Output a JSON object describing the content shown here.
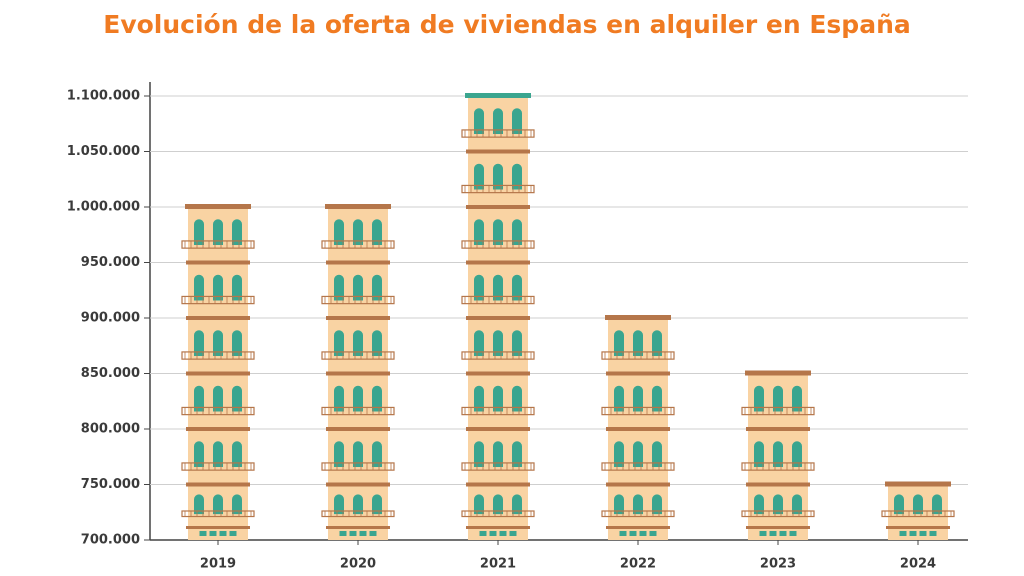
{
  "chart_data": {
    "type": "bar",
    "title": "Evolución de la oferta de viviendas en alquiler en España",
    "categories": [
      "2019",
      "2020",
      "2021",
      "2022",
      "2023",
      "2024"
    ],
    "values": [
      1000000,
      1000000,
      1100000,
      900000,
      850000,
      750000
    ],
    "color": "#f9d3a3",
    "ylim": [
      700000,
      1100000
    ],
    "yticks": [
      {
        "value": 700000,
        "label": "700.000"
      },
      {
        "value": 750000,
        "label": "750.000"
      },
      {
        "value": 800000,
        "label": "800.000"
      },
      {
        "value": 850000,
        "label": "850.000"
      },
      {
        "value": 900000,
        "label": "900.000"
      },
      {
        "value": 950000,
        "label": "950.000"
      },
      {
        "value": 1000000,
        "label": "1.000.000"
      },
      {
        "value": 1050000,
        "label": "1.050.000"
      },
      {
        "value": 1100000,
        "label": "1.100.000"
      }
    ],
    "grid": true
  }
}
